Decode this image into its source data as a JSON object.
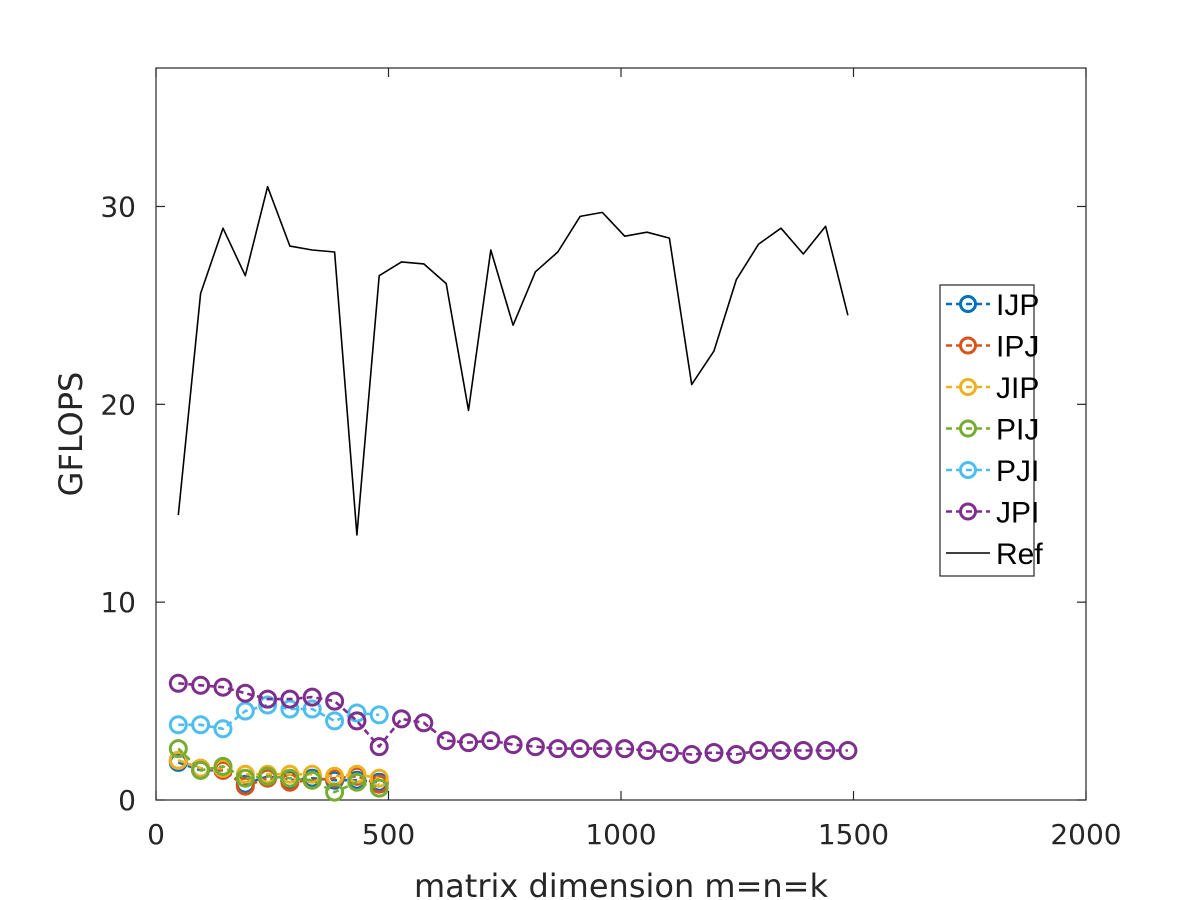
{
  "chart_data": {
    "type": "line",
    "title": "",
    "xlabel": "matrix dimension m=n=k",
    "ylabel": "GFLOPS",
    "xlim": [
      0,
      2000
    ],
    "ylim": [
      0,
      37
    ],
    "xticks": [
      0,
      500,
      1000,
      1500,
      2000
    ],
    "yticks": [
      0,
      10,
      20,
      30
    ],
    "xtick_labels": [
      "0",
      "500",
      "1000",
      "1500",
      "2000"
    ],
    "ytick_labels": [
      "0",
      "10",
      "20",
      "30"
    ],
    "grid": false,
    "legend_position": "right",
    "series": [
      {
        "name": "IJP",
        "color": "#0072BD",
        "marker": "circle",
        "x": [
          48,
          96,
          144,
          192,
          240,
          288,
          336,
          384,
          432,
          480
        ],
        "y": [
          1.9,
          1.5,
          1.5,
          0.8,
          1.2,
          1.0,
          1.1,
          1.0,
          1.0,
          0.9
        ]
      },
      {
        "name": "IPJ",
        "color": "#D95319",
        "marker": "circle",
        "x": [
          48,
          96,
          144,
          192,
          240,
          288,
          336,
          384,
          432,
          480
        ],
        "y": [
          2.0,
          1.6,
          1.5,
          0.7,
          1.1,
          0.9,
          1.0,
          1.1,
          1.2,
          0.8
        ]
      },
      {
        "name": "JIP",
        "color": "#EDB120",
        "marker": "circle",
        "x": [
          48,
          96,
          144,
          192,
          240,
          288,
          336,
          384,
          432,
          480
        ],
        "y": [
          2.0,
          1.6,
          1.6,
          1.3,
          1.3,
          1.3,
          1.3,
          1.2,
          1.3,
          1.1
        ]
      },
      {
        "name": "PIJ",
        "color": "#77AC30",
        "marker": "circle",
        "x": [
          48,
          96,
          144,
          192,
          240,
          288,
          336,
          384,
          432,
          480
        ],
        "y": [
          2.6,
          1.5,
          1.7,
          1.1,
          1.2,
          1.1,
          1.0,
          0.4,
          0.9,
          0.6
        ]
      },
      {
        "name": "PJI",
        "color": "#4DBEEE",
        "marker": "circle",
        "x": [
          48,
          96,
          144,
          192,
          240,
          288,
          336,
          384,
          432,
          480
        ],
        "y": [
          3.8,
          3.8,
          3.6,
          4.5,
          4.8,
          4.6,
          4.6,
          4.0,
          4.4,
          4.3
        ]
      },
      {
        "name": "JPI",
        "color": "#7E2F8E",
        "marker": "circle",
        "x": [
          48,
          96,
          144,
          192,
          240,
          288,
          336,
          384,
          432,
          480,
          528,
          576,
          624,
          672,
          720,
          768,
          816,
          864,
          912,
          960,
          1008,
          1056,
          1104,
          1152,
          1200,
          1248,
          1296,
          1344,
          1392,
          1440,
          1488
        ],
        "y": [
          5.9,
          5.8,
          5.7,
          5.4,
          5.1,
          5.1,
          5.2,
          5.0,
          4.0,
          2.7,
          4.1,
          3.9,
          3.0,
          2.9,
          3.0,
          2.8,
          2.7,
          2.6,
          2.6,
          2.6,
          2.6,
          2.5,
          2.4,
          2.3,
          2.4,
          2.3,
          2.5,
          2.5,
          2.5,
          2.5,
          2.5
        ]
      },
      {
        "name": "Ref",
        "color": "#000000",
        "marker": "none",
        "x": [
          48,
          96,
          144,
          192,
          240,
          288,
          336,
          384,
          432,
          480,
          528,
          576,
          624,
          672,
          720,
          768,
          816,
          864,
          912,
          960,
          1008,
          1056,
          1104,
          1152,
          1200,
          1248,
          1296,
          1344,
          1392,
          1440,
          1488
        ],
        "y": [
          14.4,
          25.6,
          28.9,
          26.5,
          31.0,
          28.0,
          27.8,
          27.7,
          13.4,
          26.5,
          27.2,
          27.1,
          26.1,
          19.7,
          27.8,
          24.0,
          26.7,
          27.7,
          29.5,
          29.7,
          28.5,
          28.7,
          28.4,
          21.0,
          22.7,
          26.3,
          28.1,
          28.9,
          27.6,
          29.0,
          24.5
        ]
      }
    ]
  }
}
